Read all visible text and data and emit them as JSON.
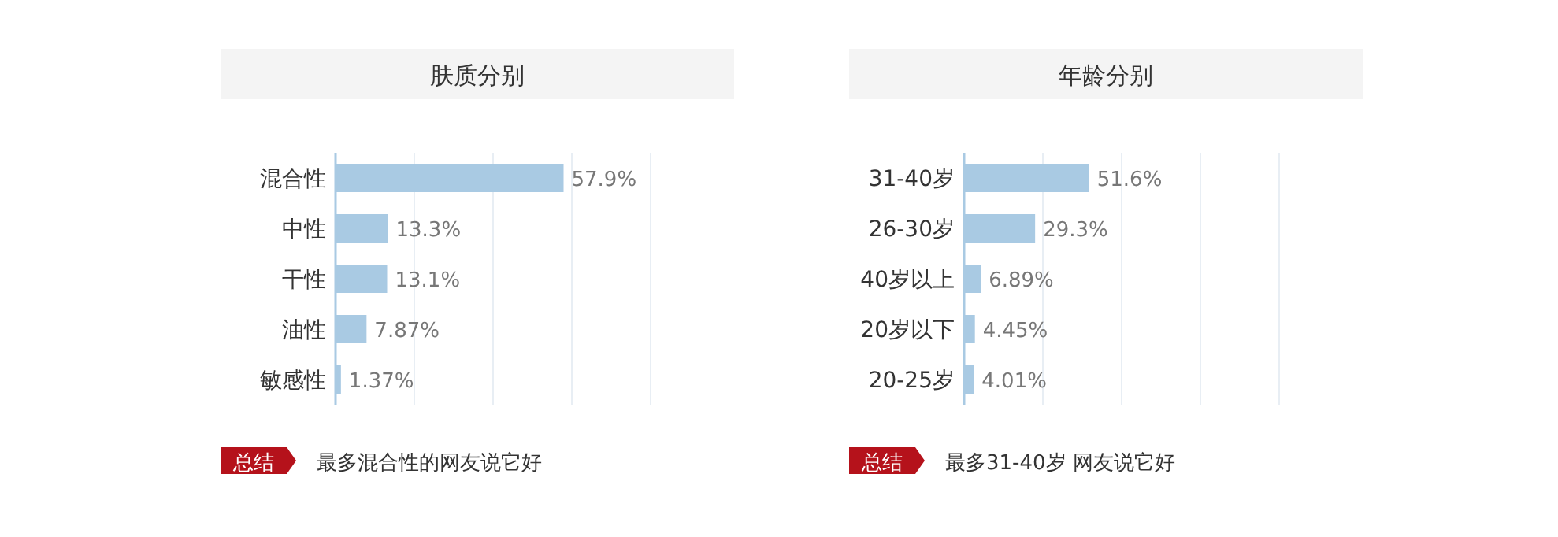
{
  "chart_data": [
    {
      "type": "bar",
      "orientation": "horizontal",
      "title": "肤质分别",
      "categories": [
        "混合性",
        "中性",
        "干性",
        "油性",
        "敏感性"
      ],
      "values": [
        57.9,
        13.3,
        13.1,
        7.87,
        1.37
      ],
      "value_labels": [
        "57.9%",
        "13.3%",
        "13.1%",
        "7.87%",
        "1.37%"
      ],
      "color": "#a9cae3",
      "xlim": [
        0,
        80
      ],
      "xticks": [
        {
          "value": 20,
          "label": null
        },
        {
          "value": 40,
          "label": null
        },
        {
          "value": 60,
          "label": null
        },
        {
          "value": 80,
          "label": null
        }
      ],
      "grid": "x",
      "annotations": [
        "总结",
        "最多混合性的网友说它好"
      ]
    },
    {
      "type": "bar",
      "orientation": "horizontal",
      "title": "年龄分别",
      "categories": [
        "31-40岁",
        "26-30岁",
        "40岁以上",
        "20岁以下",
        "20-25岁"
      ],
      "values": [
        51.6,
        29.3,
        6.89,
        4.45,
        4.01
      ],
      "value_labels": [
        "51.6%",
        "29.3%",
        "6.89%",
        "4.45%",
        "4.01%"
      ],
      "color": "#a9cae3",
      "xlim": [
        0,
        130
      ],
      "xticks": [
        {
          "value": 32.5,
          "label": null
        },
        {
          "value": 65,
          "label": null
        },
        {
          "value": 97.5,
          "label": null
        },
        {
          "value": 130,
          "label": null
        }
      ],
      "grid": "x",
      "annotations": [
        "总结",
        "最多31-40岁 网友说它好"
      ]
    }
  ]
}
